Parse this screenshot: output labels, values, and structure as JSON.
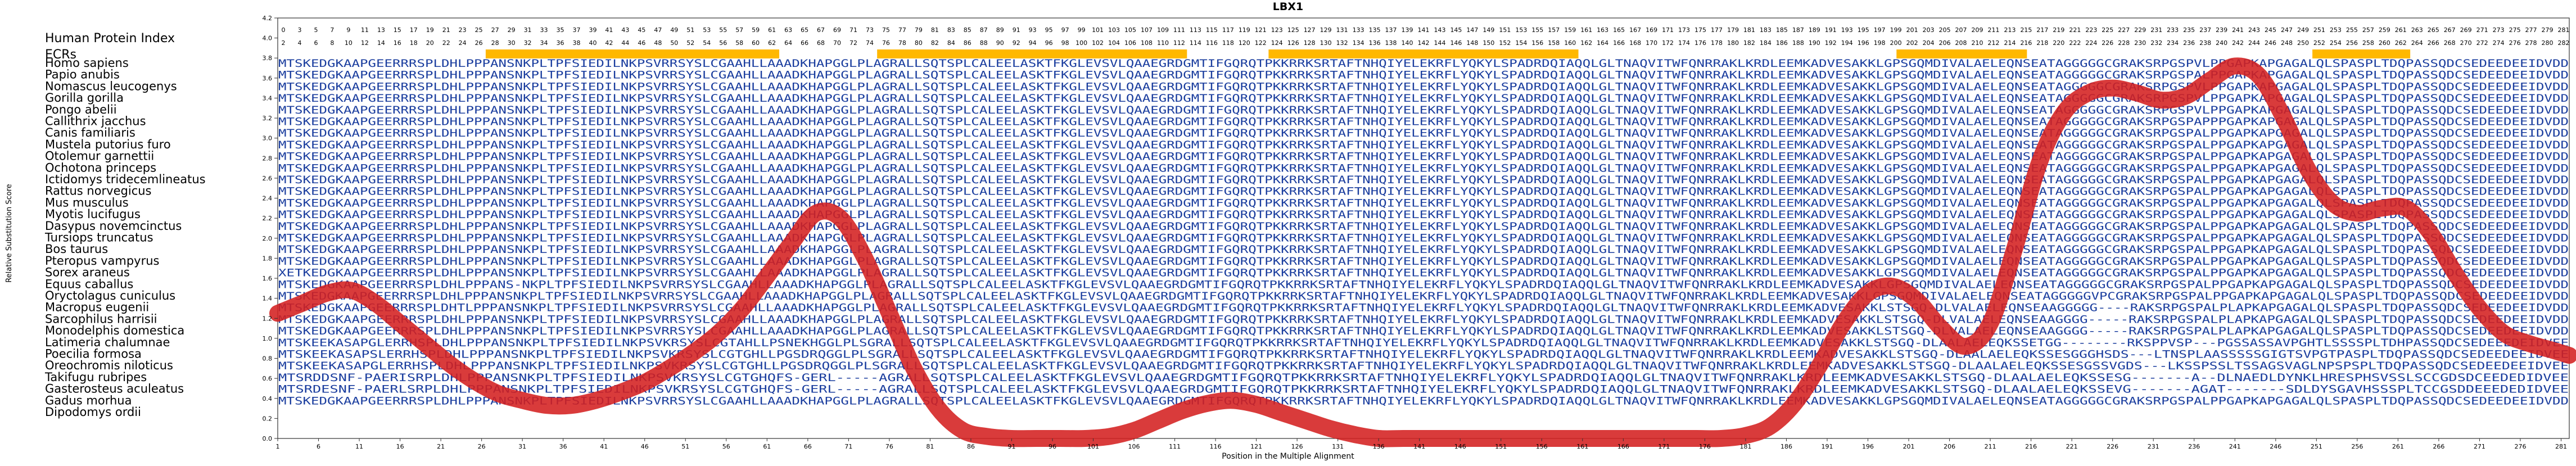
{
  "chart_data": {
    "type": "line",
    "title": "LBX1",
    "xlabel": "Position in the Multiple Alignment",
    "ylabel": "Relative Substitution Score",
    "ylim": [
      0.0,
      4.2
    ],
    "yticks": [
      "0.0",
      "0.2",
      "0.4",
      "0.6",
      "0.8",
      "1.0",
      "1.2",
      "1.4",
      "1.6",
      "1.8",
      "2.0",
      "2.2",
      "2.4",
      "2.6",
      "2.8",
      "3.0",
      "3.2",
      "3.4",
      "3.6",
      "3.8",
      "4.0",
      "4.2"
    ],
    "xlim": [
      1,
      282
    ],
    "xticks": [
      "1",
      "6",
      "11",
      "16",
      "21",
      "26",
      "31",
      "36",
      "41",
      "46",
      "51",
      "56",
      "61",
      "66",
      "71",
      "76",
      "81",
      "86",
      "91",
      "96",
      "101",
      "106",
      "111",
      "116",
      "121",
      "126",
      "131",
      "136",
      "141",
      "146",
      "151",
      "156",
      "161",
      "166",
      "171",
      "176",
      "181",
      "186",
      "191",
      "196",
      "201",
      "206",
      "211",
      "216",
      "221",
      "226",
      "231",
      "236",
      "241",
      "246",
      "251",
      "256",
      "261",
      "266",
      "271",
      "276",
      "281"
    ],
    "grid": false,
    "row_headers": {
      "index": "Human Protein Index",
      "ecrs": "ECRs"
    },
    "human_index_ticks_top": [
      "0",
      "3",
      "5",
      "7",
      "9",
      "11",
      "13",
      "15",
      "17",
      "19",
      "21",
      "23",
      "25",
      "27",
      "29",
      "31",
      "33",
      "35",
      "37",
      "39",
      "41",
      "43",
      "45",
      "47",
      "49",
      "51",
      "53",
      "55",
      "57",
      "59",
      "61",
      "63",
      "65",
      "67",
      "69",
      "71",
      "73",
      "75",
      "77",
      "79",
      "81",
      "83",
      "85",
      "87",
      "89",
      "91",
      "93",
      "95",
      "97",
      "99",
      "101",
      "103",
      "105",
      "107",
      "109",
      "111",
      "113",
      "115",
      "117",
      "119",
      "121",
      "123",
      "125",
      "127",
      "129",
      "131",
      "133",
      "135",
      "137",
      "139",
      "141",
      "143",
      "145",
      "147",
      "149",
      "151",
      "153",
      "155",
      "157",
      "159",
      "161",
      "163",
      "165",
      "167",
      "169",
      "171",
      "173",
      "175",
      "177",
      "179",
      "181",
      "183",
      "185",
      "187",
      "189",
      "191",
      "193",
      "195",
      "197",
      "199",
      "201",
      "203",
      "205",
      "207",
      "209",
      "211",
      "213",
      "215",
      "217",
      "219",
      "221",
      "223",
      "225",
      "227",
      "229",
      "231",
      "233",
      "235",
      "237",
      "239",
      "241",
      "243",
      "245",
      "247",
      "249",
      "251",
      "253",
      "255",
      "257",
      "259",
      "261",
      "263",
      "265",
      "267",
      "269",
      "271",
      "273",
      "275",
      "277",
      "279",
      "281"
    ],
    "human_index_ticks_bottom": [
      "2",
      "4",
      "6",
      "8",
      "10",
      "12",
      "14",
      "16",
      "18",
      "20",
      "22",
      "24",
      "26",
      "28",
      "30",
      "32",
      "34",
      "36",
      "38",
      "40",
      "42",
      "44",
      "46",
      "48",
      "50",
      "52",
      "54",
      "56",
      "58",
      "60",
      "62",
      "64",
      "66",
      "68",
      "70",
      "72",
      "74",
      "76",
      "78",
      "80",
      "82",
      "84",
      "86",
      "88",
      "90",
      "92",
      "94",
      "96",
      "98",
      "100",
      "102",
      "104",
      "106",
      "108",
      "110",
      "112",
      "114",
      "116",
      "118",
      "120",
      "122",
      "124",
      "126",
      "128",
      "130",
      "132",
      "134",
      "136",
      "138",
      "140",
      "142",
      "144",
      "146",
      "148",
      "150",
      "152",
      "154",
      "156",
      "158",
      "160",
      "162",
      "164",
      "166",
      "168",
      "170",
      "172",
      "174",
      "176",
      "178",
      "180",
      "182",
      "184",
      "186",
      "188",
      "190",
      "192",
      "194",
      "196",
      "198",
      "200",
      "202",
      "204",
      "206",
      "208",
      "210",
      "212",
      "214",
      "216",
      "218",
      "220",
      "222",
      "224",
      "226",
      "228",
      "230",
      "232",
      "234",
      "236",
      "238",
      "240",
      "242",
      "244",
      "246",
      "248",
      "250",
      "252",
      "254",
      "256",
      "258",
      "260",
      "262",
      "264",
      "266",
      "268",
      "270",
      "272",
      "274",
      "276",
      "278",
      "280",
      "282"
    ],
    "ecr_segments": [
      [
        27,
        62
      ],
      [
        75,
        112
      ],
      [
        123,
        160
      ],
      [
        200,
        215
      ],
      [
        251,
        262
      ]
    ],
    "species": [
      "Homo sapiens",
      "Papio anubis",
      "Nomascus leucogenys",
      "Gorilla gorilla",
      "Pongo abelii",
      "Callithrix jacchus",
      "Canis familiaris",
      "Mustela putorius furo",
      "Otolemur garnettii",
      "Ochotona princeps",
      "Ictidomys tridecemlineatus",
      "Rattus norvegicus",
      "Mus musculus",
      "Myotis lucifugus",
      "Dasypus novemcinctus",
      "Tursiops truncatus",
      "Bos taurus",
      "Pteropus vampyrus",
      "Sorex araneus",
      "Equus caballus",
      "Oryctolagus cuniculus",
      "Macropus eugenii",
      "Sarcophilus harrisii",
      "Monodelphis domestica",
      "Latimeria chalumnae",
      "Poecilia formosa",
      "Oreochromis niloticus",
      "Takifugu rubripes",
      "Gasterosteus aculeatus",
      "Gadus morhua",
      "Dipodomys ordii"
    ],
    "sequences": [
      "MTSKEDGKAAPGEERRRSPLDHLPPPANSNKPLTPFSIEDILNKPSVRRSYSLCGAAHLLAAADKHAPGGLPLAGRALLSQTSPLCALEELASKTFKGLEVSVLQAAEGRDGMTIFGQRQTPKKRRKSRTAFTNHQIYELEKRFLYQKYLSPADRDQIAQQLGLTNAQVITWFQNRRAKLKRDLEEMKADVESAKKLGPSGQMDIVALAELEQNSEATAGGGGGCGRAKSRPGSPVLPPGAPKAPGAGALQLSPASPLTDQPASSQDCSEDEEDEEIDVDD",
      "MTSKEDGKAAPGEERRRSPLDHLPPPANSNKPLTPFSIEDILNKPSVRRSYSLCGAAHLLAAADKHAPGGLPLAGRALLSQTSPLCALEELASKTFKGLEVSVLQAAEGRDGMTIFGQRQTPKKRRKSRTAFTNHQIYELEKRFLYQKYLSPADRDQIAQQLGLTNAQVITWFQNRRAKLKRDLEEMKADVESAKKLGPSGQMDIVALAELEQNSEATAGGGGGCGRAKSRPGSPALPPGAPKAPGAGALQLSPASPLTDQPASSQDCSEDEEDEEIDVDD",
      "MTSKEDGKAAPGEERRRSPLDHLPPPANSNKPLTPFSIEDILNKPSVRRSYSLCGAAHLLAAADKHAPGGLPLAGRALLSQTSPLCALEELASKTFKGLEVSVLQAAEGRDGMTIFGQRQTPKKRRKSRTAFTNHQIYELEKRFLYQKYLSPADRDQIAQQLGLTNAQVITWFQNRRAKLKRDLEEMKADVESAKKLGPSGQMDIVALAELEQNSEATAGGGGGCGRAKSRPGSPVLPPGAPKAPGAGALQLSPASPLTDQPASSQDCSEDEEDEEIDVDD",
      "MTSKEDGKAAPGEERRRSPLDHLPPPANSNKPLTPFSIEDILNKPSVRRSYSLCGAAHLLAAADKHAPGGLPLAGRALLSQTSPLCALEELASKTFKGLEVSVLQAAEGRDGMTIFGQRQTPKKRRKSRTAFTNHQIYELEKRFLYQKYLSPADRDQIAQQLGLTNAQVITWFQNRRAKLKRDLEEMKADVESAKKLGPSGQMDIVALAELEQNSEATAGGGGGCGRAKSRPGSPVLPPGAPKAPGAGALQLSPASPLTDQPASSQDCSEDEEDEEIDVDD",
      "MTSKEDGKAAPGEERRRSPLDHLPPPANSNKPLTPFSIEDILNKPSVRRSYSLCGAAHLLAAADKHAPGGLPLAGRALLSQTSPLCALEELASKTFKGLEVSVLQAAEGRDGMTIFGQRQTPKKRRKSRTAFTNHQIYELEKRFLYQKYLSPADRDQIAQQLGLTNAQVITWFQNRRAKLKRDLEEMKADVESAKKLGPSGQMDIVALAELEQNSEATAGGGGGCGRAKSRPGSPVLPPGAPKAPGAGALQLSPASPLTDQPASSQDCSEDEEDEEIDVDD",
      "MTSKEDGKAAPGEERRRSPLDHLPPPANSNKPLTPFSIEDILNKPSVRRSYSLCGAAHLLAAADKHAPGGLPLAGRALLSQTSPLCALEELASKTFKGLEVSVLQAAEGRDGMTIFGQRQTPKKRRKSRTAFTNHQIYELEKRFLYQKYLSPADRDQIAQQLGLTNAQVITWFQNRRAKLKRDLEEMKADVESAKKLGPSGQMDIVALAELEQNSEATAGGGGGCGRAKSRPGSPAPPPGAPKAPGAGALQLSPASPLTDQPASSQDCSEDEEDEEIDVDD",
      "MTSKEDGKAAPGEERRRSPLDHLPPPANSNKPLTPFSIEDILNKPSVRRSYSLCGAAHLLAAADKHAPGGLPLAGRALLSQTSPLCALEELASKTFKGLEVSVLQAAEGRDGMTIFGQRQTPKKRRKSRTAFTNHQIYELEKRFLYQKYLSPADRDQIAQQLGLTNAQVITWFQNRRAKLKRDLEEMKADVESAKKLGPSGQMDIVALAELEQNSEATAGGGGGCGRAKSRPGSPALPPGAPKAPGAGALQLSPASPLTDQPASSQDCSEDEEDEEIDVDD",
      "MTSKEDGKAAPGEERRRSPLDHLPPPANSNKPLTPFSIEDILNKPSVRRSYSLCGAAHLLAAADKHAPGGLPLAGRALLSQTSPLCALEELASKTFKGLEVSVLQAAEGRDGMTIFGQRQTPKKRRKSRTAFTNHQIYELEKRFLYQKYLSPADRDQIAQQLGLTNAQVITWFQNRRAKLKRDLEEMKADVESAKKLGPSGQMDIVALAELEQNSEATAGGGGGCGRAKSRPGSPALPPGAPKAPGAGALQLSPASPLTDQPASSQDCSEDEEDEEIDVDD",
      "MTSKEDGKAAPGEERRRSPLDHLPPPANSNKPLTPFSIEDILNKPSVRRSYSLCGAAHLLAAADKHAPGGLPLAGRALLSQTSPLCALEELASKTFKGLEVSVLQAAEGRDGMTIFGQRQTPKKRRKSRTAFTNHQIYELEKRFLYQKYLSPADRDQIAQQLGLTNAQVITWFQNRRAKLKRDLEEMKADVESAKKLGPSGQMDIVALAELEQNSEATAGGGGGCGRAKSRPGSPALPPGAPKAPGAGALQLSPASPLTDQPASSQDCSEDEEDEEIDVDD",
      "MTSKEDGKAAPGEERRRSPLDHLPPPANSNKPLTPFSIEDILNKPSVRRSYSLCGAAHLLAAADKHAPGGLPLAGRALLSQTSPLCALEELASKTFKGLEVSVLQAAEGRDGMTIFGQRQTPKKRRKSRTAFTNHQIYELEKRFLYQKYLSPADRDQIAQQLGLTNAQVITWFQNRRAKLKRDLEEMKADVESAKKLGPSGQMDIVALAELEQNSEATAGGGGGCGRAKSRPGSPALPPGAPKAPGAGALQLSPASPLTDQPASSQDCSEDEEDEEIDVDD",
      "MTSKEDGKAAPGEERRRSPLDHLPPPANSNKPLTPFSIEDILNKPSVRRSYSLCGAAHLLAAADKHAPGGLPLAGRALLSQTSPLCALEELASKTFKGLEVSVLQAAEGRDGMTIFGQRQTPKKRRKSRTAFTNHQIYELEKRFLYQKYLSPADRDQIAQQLGLTNAQVITWFQNRRAKLKRDLEEMKADVESAKKLGPSGQMDIVALAELEQNSEATAGGGGGCGRAKSRPGSPALPPGAPKAPGAGALQLSPASPLTDQPASSQDCSEDEEDEEIDVDD",
      "MTSKEDGKAAPGEERRRSPLDHLPPPANSNKPLTPFSIEDILNKPSVRRSYSLCGAAHLLAAADKHAPGGLPLAGRALLSQTSPLCALEELASKTFKGLEVSVLQAAEGRDGMTIFGQRQTPKKRRKSRTAFTNHQIYELEKRFLYQKYLSPADRDQIAQQLGLTNAQVITWFQNRRAKLKRDLEEMKADVESAKKLGPSGQMDIVALAELEQNSEATAGGGGGCGRAKSRPGSPALPPGAPKAPGAGALQLSPASPLTDQPASSQDCSEDEEDEEIDVDD",
      "MTSKEDGKAAPGEERRRSPLDHLPPPANSNKPLTPFSIEDILNKPSVRRSYSLCGAAHLLAAADKHAPGGLPLAGRALLSQTSPLCALEELASKTFKGLEVSVLQAAEGRDGMTIFGQRQTPKKRRKSRTAFTNHQIYELEKRFLYQKYLSPADRDQIAQQLGLTNAQVITWFQNRRAKLKRDLEEMKADVESAKKLGPSGQMDIVALAELEQNSEATAGGGGGCGRAKSRPGSPALPPGAPKAPGAGALQLSPASPLTDQPASSQDCSEDEEDEEIDVDD",
      "MTSKEDGKAAPGEERRRSPLDHLPPPANSNKPLTPFSIEDILNKPSVRRSYSLCGAAHLLAAADKHAPGGLPLAGRALLSQTSPLCALEELASKTFKGLEVSVLQAAEGRDGMTIFGQRQTPKKRRKSRTAFTNHQIYELEKRFLYQKYLSPADRDQIAQQLGLTNAQVITWFQNRRAKLKRDLEEMKADVESAKKLGPSGQMDIVALAELEQNSEATAGGGGGCGRAKSRPGSPALPPGAPKAPGAGALQLSPASPLTDQPASSQDCSEDEEDEEIDVDD",
      "MTSKEDGKAAPGEERRRSPLDHLPPPANSNKPLTPFSIEDILNKPSVRRSYSLCGAAHLLAAADKHAPGGLPLAGRALLSQTSPLCALEELASKTFKGLEVSVLQAAEGRDGMTIFGQRQTPKKRRKSRTAFTNHQIYELEKRFLYQKYLSPADRDQIAQQLGLTNAQVITWFQNRRAKLKRDLEEMKADVESAKKLGPSGQMDIVALAELEQNSEATAGGGGGCGRAKSRPGSPALPPGAPKAPGAGALQLSPASPLTDQPASSQDCSEDEEDEEIDVDD",
      "MTSKEDGKAAPGEERRRSPLDHLPPPANSNKPLTPFSIEDILNKPSVRRSYSLCGAAHLLAAADKHAPGGLPLAGRALLSQTSPLCALEELASKTFKGLEVSVLQAAEGRDGMTIFGQRQTPKKRRKSRTAFTNHQIYELEKRFLYQKYLSPADRDQIAQQLGLTNAQVITWFQNRRAKLKRDLEEMKADVESAKKLGPSGQMDIVALAELEQNSEATAGGGGGCGRAKSRPGSPALPPGAPKAPGAGALQLSPASPLTDQPASSQDCSEDEEDEEIDVDD",
      "MTSKEDGKAAPGEERRRSPLDHLPPPANSNKPLTPFSIEDILNKPSVRRSYSLCGAAHLLAAADKHAPGGLPLAGRALLSQTSPLCALEELASKTFKGLEVSVLQAAEGRDGMTIFGQRQTPKKRRKSRTAFTNHQIYELEKRFLYQKYLSPADRDQIAQQLGLTNAQVITWFQNRRAKLKRDLEEMKADVESAKKLGPSGQMDIVALAELEQNSEATAGGGGGCGRAKSRPGSPALPPGAPKAPGAGALQLSPASPLTDQPASSQDCSEDEEDEEIDVDD",
      "MTSKEDGKAAPGEERRRSPLDHLPPPANSNKPLTPFSIEDILNKPSVRRSYSLCGAAHLLAAADKHAPGGLPLAGRALLSQTSPLCALEELASKTFKGLEVSVLQAAEGRDGMTIFGQRQTPKKRRKSRTAFTNHQIYELEKRFLYQKYLSPADRDQIAQQLGLTNAQVITWFQNRRAKLKRDLEEMKADVESAKKLGPSGQMDIVALAELEQNSEATAGGGGGCGRAKSRPGSPALPPGAPKAPGAGALQLSPASPLTDQPASSQDCSEDEEDEEIDVDD",
      "XETKEDGKAAPGEERRRSPLDHLPPPANSNKPLTPFSIEDILNKPSVRRSYSLCGAAHLLAAADKHAPGGLPLAGRALLSQTSPLCALEELASKTFKGLEVSVLQAAEGRDGMTIFGQRQTPKKRRKSRTAFTNHQIYELEKRFLYQKYLSPADRDQIAQQLGLTNAQVITWFQNRRAKLKRDLEEMKADVESAKKLGPSGQMDIVALAELEQNSEATAGGGGGCGRAKSRPGSPALPPGAPKAPGAGALQLSPASPLTDQPASSQDCSEDEEDEEIDVDD",
      "MTSKEDGKAAPGEERRRSPLDHLPPPANS-NKPLTPFSIEDILNKPSVRRSYSLCGAAHLLAAADKHAPGGLPLAGRALLSQTSPLCALEELASKTFKGLEVSVLQAAEGRDGMTIFGQRQTPKKRRKSRTAFTNHQIYELEKRFLYQKYLSPADRDQIAQQLGLTNAQVITWFQNRRAKLKRDLEEMKADVESAKKLGPSGQMDIVALAELEQNSEATAGGGGGCGRAKSRPGSPALPPGAPKAPGAGALQLSPASPLTDQPASSQDCSEDEEDEEIDVDD",
      "MTSKEDGKAAPGEERRRSPLDHLPPPANSNKPLTPFSIEDILNKPSVRRSYSLCGAAHLLAAADKHAPGGLPLAGRALLSQTSPLCALEELASKTFKGLEVSVLQAAEGRDGMTIFGQRQTPKKRRKSRTAFTNHQIYELEKRFLYQKYLSPADRDQIAQQLGLTNAQVITWFQNRRAKLKRDLEEMKADVESAKKLGPSGQMDIVALAELEQNSEATAGGGGGVPCGRAKSRPGSPALPPGAPKAPGAGALQLSPASPLTDQPASSQDCSEDEEDEEIDVDD",
      "MTSKEDGKAAPGEERRRSPLDHTLPPPANSNKPLTPFSIEDILNKPSVRRSYSLCGAAHLLAAADKHAPGGLPLAGRALLSQTSPLCALEELASKTFKGLEVSVLQAAEGRDGMTIFGQRQTPKKRRKSRTAFTNHQIYELEKRFLYQKYLSPADRDQIAQQLGLTNAQVITWFQNRRAKLKRDLEEMKADVESAKKLSTSGQ-DLVALAELEQNSEAAGGGGG----RAKSRPGSPALPLAPKAPGAGALQLSPASPLTDQPASSQDCSEDEEDEEIDVDD",
      "MTSKEDGKAAPGEERRRSPLDHLPPPANSNKPLTPFSIEDILNKPSVRRSYSLCGAAHLLAAADKHAPGGLPLAGRALLSQTSPLCALEELASKTFKGLEVSVLQAAEGRDGMTIFGQRQTPKKRRKSRTAFTNHQIYELEKRFLYQKYLSPADRDQIAQQLGLTNAQVITWFQNRRAKLKRDLEEMKADVESAKKLSTSGQ-DLVALAELEQNSEAAGGGG-----RAKSRPGSPALPLAPKAPGAGALQLSPASPLTDQPASSQDCSEDEEDEEIDVDD",
      "MTSKEDGKAAPGEERRRSPLDHLPPPANSNKPLTPFSIEDILNKPSVRRSYSLCGAAHLLAAADKHAPGGLPLAGRALLSQTSPLCALEELASKTFKGLEVSVLQAAEGRDGMTIFGQRQTPKKRRKSRTAFTNHQIYELEKRFLYQKYLSPADRDQIAQQLGLTNAQVITWFQNRRAKLKRDLEEMKADVESAKKLSTSGQ-DLVALAELEQNSEAAGGGG-----RAKSRPGSPALPLAPKAPGAGALQLSPASPLTDQPASSQDCSEDEEDEEIDVDD",
      "MTSKEEKASAPGLERRHSPLDHLPPPANSNKPLTPFSIEDILNKPSVKRSYSLCGTAHLLPSNEKHGGLPLSGRALLSQTSPLCALEELASKTFKGLEVSVLQAAEGRDGMTIFGQRQTPKKRRKSRTAFTNHQIYELEKRFLYQKYLSPADRDQIAQQLGLTNAQVITWFQNRRAKLKRDLEEMKADVESAKKLSTSGQ-DLAALAELEQKSSETGG--------RKSPPVSP---PGSSASSAVPGHTLSSSSPLTDHPASSQDCSEDEEEDEIDVEE",
      "MTSKEEKASAPSLERRHSPLDHLPPPANSNKPLTPFSIEDILNKPSVKRSYSLCGTGHLLPGSDRQGGLPLSGRALLSQTSPLCALEELASKTFKGLEVSVLQAAEGRDGMTIFGQRQTPKKRRKSRTAFTNHQIYELEKRFLYQKYLSPADRDQIAQQLGLTNAQVITWFQNRRAKLKRDLEEMKADVESAKKLSTSGQ-DLAALAELEQKSSESGGGHSDS---LTNSPLAASSSSSGIGTSVPGTPASPLTDQPASSQDCSEDEEDEEIDVEE",
      "MTSKEEKASAPGLERRHSPLDHLPPPANSNKPLTPFSIEDILNKPSVKRSYSLCGTGHLLPGSDRQGGLPLSGRALLSQTSPLCALEELASKTFKGLEVSVLQAAEGRDGMTIFGQRQTPKKRRKSRTAFTNHQIYELEKRFLYQKYLSPADRDQIAQQLGLTNAQVITWFQNRRAKLKRDLEEMKADVESAKKLSTSGQ-DLAALAELEQKSSESGSSVGDS---LKSSPSSLTSSAGSVAGLNPSPSPLTDQPASSQDCSEDEEDEEIDVEE",
      "MTSRDDSNF-PAERISRPLDHLPPPANSNKPLTPFSIEDILNKPSVKRSYSLCGTGHQFS-GERL-----AGRALLSQTSPLCALEELASKTFKGLEVSVLQAAEGRDGMTIFGQRQTPKKRRKSRTAFTNHQIYELEKRFLYQKYLSPADRDQIAQQLGLTNAQVITWFQNRRAKLKRDLEEMKADVESAKKLSTSGQ-DLAALAELEQKSSESG-------A--DLNAEDLDYNKLHRESPHSVSSLSCCGDSDCEEDEDIDVEE",
      "MTSRDESNF-PAERLSRPLDHLPPPANSNKPLTPFSIEDILNKPSVKRSYSLCGTGHQFS-GERL-----AGRALLSQTSPLCALEELASKTFKGLEVSVLQAAEGRDGMTIFGQRQTPKKRRKSRTAFTNHQIYELEKRFLYQKYLSPADRDQIAQQLGLTNAQVITWFQNRRAKLKRDLEEMKADVESAKKLSTSGQ-DLAALAELEQKSSEVG-------AGAT-------SDLDYSGAVHSSSPLTCCGSDDEEEDEDIDVEE",
      "MTSKEDGKAAPGEERRRSPLDHLPPPANSNKPLTPFSIEDILNKPSVRRSYSLCGAAHLLAAADKHAPGGLPLAGRALLSQTSPLCALEELASKTFKGLEVSVLQAAEGRDGMTIFGQRQTPKKRRKSRTAFTNHQIYELEKRFLYQKYLSPADRDQIAQQLGLTNAQVITWFQNRRAKLKRDLEEMKADVESAKKLGPSGQMDIVALAELEQNSEATAGGGGGCGRAKSRPGSPALPPGAPKAPGAGALQLSPASPLTDQPASSQDCSEDEEDEEIDVDD"
    ],
    "series": [
      {
        "x": [
          1,
          4,
          7,
          10,
          13,
          16,
          19,
          22,
          25,
          28,
          31,
          34,
          37,
          40,
          43,
          46,
          49,
          52,
          55,
          58,
          61,
          64,
          67,
          70,
          73,
          76,
          79,
          82,
          85,
          88,
          91,
          94,
          97,
          100,
          103,
          106,
          109,
          112,
          115,
          118,
          121,
          124,
          127,
          130,
          133,
          136,
          139,
          142,
          145,
          148,
          151,
          154,
          157,
          160,
          163,
          166,
          169,
          172,
          175,
          178,
          181,
          184,
          187,
          190,
          193,
          196,
          199,
          202,
          205,
          208,
          211,
          214,
          217,
          220,
          223,
          226,
          229,
          232,
          235,
          238,
          241,
          244,
          247,
          250,
          253,
          256,
          259,
          262,
          265,
          268,
          271,
          274,
          277,
          280,
          282
        ],
        "values": [
          1.25,
          1.35,
          1.45,
          1.48,
          1.35,
          1.15,
          0.95,
          0.75,
          0.58,
          0.45,
          0.38,
          0.33,
          0.33,
          0.38,
          0.46,
          0.56,
          0.7,
          0.86,
          1.05,
          1.3,
          1.62,
          1.95,
          2.25,
          2.2,
          1.8,
          1.25,
          0.7,
          0.3,
          0.08,
          0.02,
          0.0,
          0.0,
          0.0,
          0.0,
          0.02,
          0.08,
          0.18,
          0.28,
          0.35,
          0.38,
          0.34,
          0.26,
          0.18,
          0.1,
          0.04,
          0.0,
          0.0,
          0.0,
          0.0,
          0.0,
          0.0,
          0.0,
          0.0,
          0.0,
          0.0,
          0.0,
          0.0,
          0.0,
          0.0,
          0.0,
          0.03,
          0.12,
          0.35,
          0.72,
          1.15,
          1.45,
          1.52,
          1.38,
          1.1,
          0.92,
          1.15,
          1.9,
          2.75,
          3.25,
          3.45,
          3.5,
          3.45,
          3.38,
          3.42,
          3.58,
          3.72,
          3.62,
          3.2,
          2.68,
          2.35,
          2.25,
          2.3,
          2.3,
          2.05,
          1.65,
          1.3,
          1.05,
          0.95,
          0.88,
          0.83
        ]
      }
    ],
    "colors": {
      "curve": "#D42020",
      "residue": "#1A3D9E",
      "ecr": "#FFB800",
      "axis": "#333333",
      "faded_residue": "#8AA0CF"
    }
  }
}
